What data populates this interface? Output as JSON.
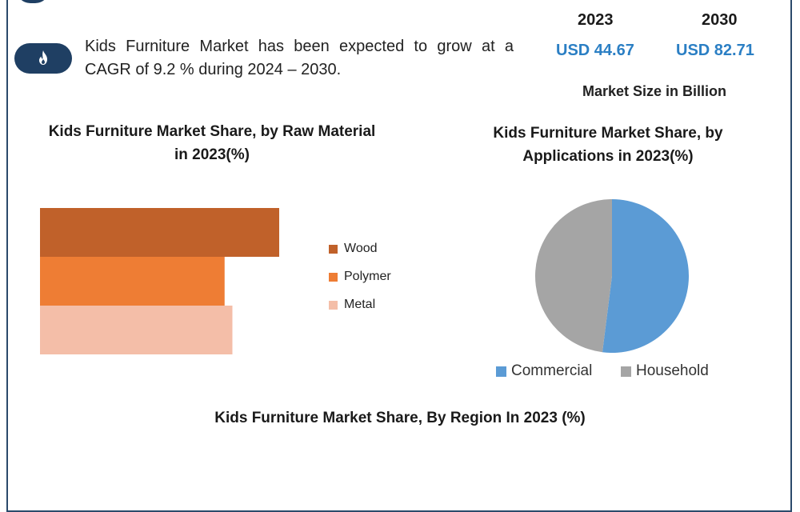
{
  "header": {
    "growth_statement": "Kids Furniture Market has been expected to grow at a CAGR of 9.2 % during 2024 – 2030.",
    "flame_icon": "flame-icon",
    "year_start": "2023",
    "year_end": "2030",
    "value_start": "USD 44.67",
    "value_end": "USD 82.71",
    "market_size_label": "Market Size in Billion",
    "accent_color": "#2b7fc4",
    "badge_color": "#1f3f63"
  },
  "chart_data": [
    {
      "type": "bar",
      "orientation": "horizontal",
      "title": "Kids Furniture Market Share, by Raw Material in 2023(%)",
      "categories": [
        "Wood",
        "Polymer",
        "Metal"
      ],
      "values": [
        46,
        35.5,
        37
      ],
      "colors": [
        "#c0612a",
        "#ee7d34",
        "#f4bea8"
      ],
      "xlim": [
        0,
        100
      ],
      "legend": "right",
      "grid": false
    },
    {
      "type": "pie",
      "title": "Kids Furniture Market Share, by Applications in 2023(%)",
      "labels": [
        "Commercial",
        "Household"
      ],
      "values": [
        52,
        48
      ],
      "colors": [
        "#5b9bd5",
        "#a5a5a5"
      ],
      "legend": "bottom"
    }
  ],
  "region_title": "Kids Furniture Market Share, By Region In 2023 (%)"
}
